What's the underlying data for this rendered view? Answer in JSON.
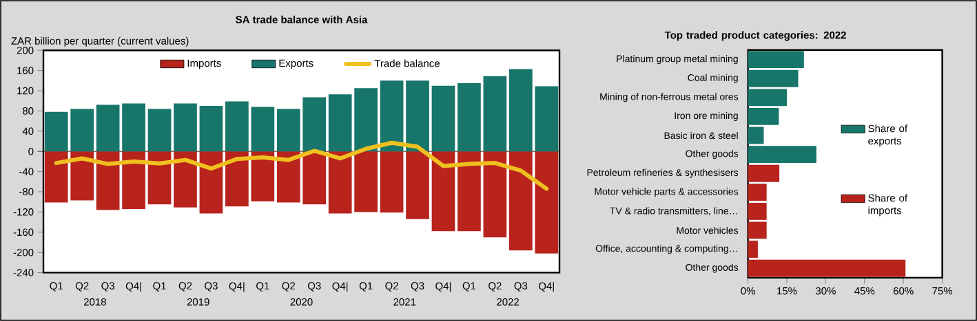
{
  "chart_data": [
    {
      "type": "bar",
      "title": "SA trade balance with Asia",
      "ylabel": "ZAR billion per quarter (current values)",
      "categories": [
        "Q1",
        "Q2",
        "Q3",
        "Q4|",
        "Q1",
        "Q2",
        "Q3",
        "Q4|",
        "Q1",
        "Q2",
        "Q3",
        "Q4|",
        "Q1",
        "Q2",
        "Q3",
        "Q4|",
        "Q1",
        "Q2",
        "Q3",
        "Q4|"
      ],
      "annotations": [
        "2018",
        "2019",
        "2020",
        "2021",
        "2022"
      ],
      "stacked": true,
      "legend": "top",
      "ylim": [
        -240,
        200
      ],
      "yticks": [
        -240,
        -200,
        -160,
        -120,
        -80,
        -40,
        0,
        40,
        80,
        120,
        160,
        200
      ],
      "series": [
        {
          "name": "Imports",
          "color": "#b8231c",
          "values": [
            -101,
            -97,
            -116,
            -114,
            -105,
            -111,
            -123,
            -109,
            -99,
            -101,
            -105,
            -123,
            -120,
            -121,
            -134,
            -158,
            -158,
            -170,
            -196,
            -202
          ]
        },
        {
          "name": "Exports",
          "color": "#17756a",
          "values": [
            78,
            84,
            92,
            95,
            84,
            95,
            90,
            99,
            88,
            84,
            107,
            113,
            125,
            140,
            140,
            130,
            135,
            149,
            163,
            129
          ]
        },
        {
          "name": "Trade balance",
          "type": "line",
          "color": "#f0c020",
          "values": [
            -23,
            -14,
            -25,
            -20,
            -24,
            -17,
            -34,
            -15,
            -12,
            -17,
            1,
            -14,
            5,
            17,
            9,
            -29,
            -25,
            -23,
            -38,
            -74
          ]
        }
      ]
    },
    {
      "type": "bar",
      "orientation": "horizontal",
      "title": "Top traded product categories: 2022",
      "categories": [
        "Platinum group metal mining",
        "Coal mining",
        "Mining of non-ferrous metal ores",
        "Iron ore mining",
        "Basic iron & steel",
        "Other goods",
        "Petroleum refineries & synthesisers",
        "Motor vehicle parts & accessories",
        "TV & radio transmitters, line…",
        "Motor vehicles",
        "Office, accounting & computing…",
        "Other goods"
      ],
      "stacked": true,
      "legend": "right",
      "xlim": [
        0,
        75
      ],
      "xticks": [
        {
          "value": 0,
          "label": "0%"
        },
        {
          "value": 15,
          "label": "15%"
        },
        {
          "value": 30,
          "label": "30%"
        },
        {
          "value": 45,
          "label": "45%"
        },
        {
          "value": 60,
          "label": "60%"
        },
        {
          "value": 75,
          "label": "75%"
        }
      ],
      "series": [
        {
          "name": "Share of exports",
          "color": "#17756a",
          "values": [
            21.6,
            19.4,
            15.0,
            11.9,
            6.1,
            26.4,
            null,
            null,
            null,
            null,
            null,
            null
          ]
        },
        {
          "name": "Share of imports",
          "color": "#b8231c",
          "values": [
            null,
            null,
            null,
            null,
            null,
            null,
            12.1,
            7.2,
            7.2,
            7.2,
            3.8,
            60.8
          ]
        }
      ]
    }
  ]
}
